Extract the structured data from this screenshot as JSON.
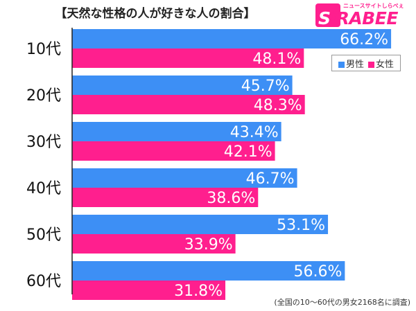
{
  "title": "【天然な性格の人が好きな人の割合】",
  "logo": {
    "ruby": "ニュースサイトしらべぇ",
    "first": "S",
    "rest": "iRABEE"
  },
  "footnote": "(全国の10〜60代の男女2168名に調査)",
  "colors": {
    "male": "#3d8ff5",
    "female": "#ff1f8e"
  },
  "chart_data": {
    "type": "bar",
    "orientation": "horizontal",
    "categories": [
      "10代",
      "20代",
      "30代",
      "40代",
      "50代",
      "60代"
    ],
    "series": [
      {
        "name": "男性",
        "values": [
          66.2,
          45.7,
          43.4,
          46.7,
          53.1,
          56.6
        ],
        "color": "#3d8ff5"
      },
      {
        "name": "女性",
        "values": [
          48.1,
          48.3,
          42.1,
          38.6,
          33.9,
          31.8
        ],
        "color": "#ff1f8e"
      }
    ],
    "value_suffix": "%",
    "xlim": [
      0,
      70
    ],
    "grid": false,
    "legend": "right"
  }
}
